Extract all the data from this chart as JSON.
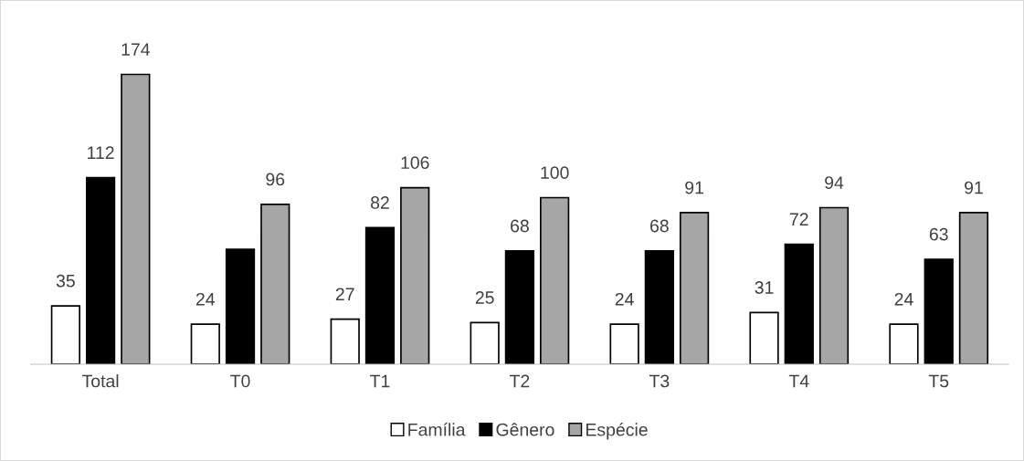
{
  "chart_data": {
    "type": "bar",
    "categories": [
      "Total",
      "T0",
      "T1",
      "T2",
      "T3",
      "T4",
      "T5"
    ],
    "series": [
      {
        "name": "Família",
        "color": "#ffffff",
        "values": [
          35,
          24,
          27,
          25,
          24,
          31,
          24
        ],
        "value_labels": [
          "35",
          "24",
          "27",
          "25",
          "24",
          "31",
          "24"
        ]
      },
      {
        "name": "Gênero",
        "color": "#000000",
        "values": [
          112,
          69,
          82,
          68,
          68,
          72,
          63
        ],
        "value_labels": [
          "112",
          null,
          "82",
          "68",
          "68",
          "72",
          "63"
        ]
      },
      {
        "name": "Espécie",
        "color": "#a6a6a6",
        "values": [
          174,
          96,
          106,
          100,
          91,
          94,
          91
        ],
        "value_labels": [
          "174",
          "96",
          "106",
          "100",
          "91",
          "94",
          "91"
        ]
      }
    ],
    "legend": "bottom"
  }
}
